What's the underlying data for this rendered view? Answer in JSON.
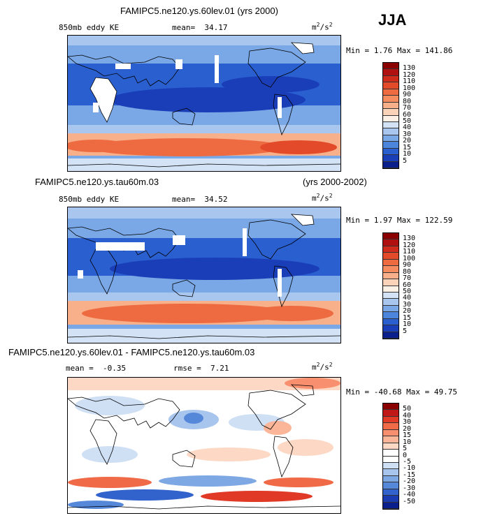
{
  "season": "JJA",
  "panels": [
    {
      "title": "FAMIPC5.ne120.ys.60lev.01 (yrs 2000)",
      "subtitle": "",
      "field_label": "850mb eddy KE",
      "mean_label": "mean=",
      "mean": "34.17",
      "rmse_label": "",
      "rmse": "",
      "units": "m",
      "units_sup": "2",
      "units_tail": "/s",
      "units_sup2": "2",
      "min_max": "Min =   1.76 Max =  141.86",
      "scale": "ke",
      "colorbar_ticks": [
        "130",
        "120",
        "110",
        "100",
        "90",
        "80",
        "70",
        "60",
        "50",
        "40",
        "30",
        "20",
        "15",
        "10",
        "5"
      ]
    },
    {
      "title": "FAMIPC5.ne120.ys.tau60m.03",
      "subtitle": "(yrs 2000-2002)",
      "field_label": "850mb eddy KE",
      "mean_label": "mean=",
      "mean": "34.52",
      "rmse_label": "",
      "rmse": "",
      "units": "m",
      "units_sup": "2",
      "units_tail": "/s",
      "units_sup2": "2",
      "min_max": "Min =   1.97 Max =  122.59",
      "scale": "ke",
      "colorbar_ticks": [
        "130",
        "120",
        "110",
        "100",
        "90",
        "80",
        "70",
        "60",
        "50",
        "40",
        "30",
        "20",
        "15",
        "10",
        "5"
      ]
    },
    {
      "title": "FAMIPC5.ne120.ys.60lev.01 - FAMIPC5.ne120.ys.tau60m.03",
      "subtitle": "",
      "field_label": "",
      "mean_label": "mean =",
      "mean": "-0.35",
      "rmse_label": "rmse =",
      "rmse": "7.21",
      "units": "m",
      "units_sup": "2",
      "units_tail": "/s",
      "units_sup2": "2",
      "min_max": "Min = -40.68 Max =  49.75",
      "scale": "diff",
      "colorbar_ticks": [
        "50",
        "40",
        "30",
        "20",
        "15",
        "10",
        "5",
        "0",
        "-5",
        "-10",
        "-15",
        "-20",
        "-30",
        "-40",
        "-50"
      ]
    }
  ],
  "colors": {
    "ke_scale": [
      "#8b0000",
      "#b01010",
      "#cf2a1a",
      "#e24a2a",
      "#ee6a40",
      "#f48c60",
      "#f8b08a",
      "#fbd3b8",
      "#fdf1e6",
      "#d3e2f5",
      "#a9c7ee",
      "#7aa8e6",
      "#4c86dc",
      "#2a5fd0",
      "#1a3eb8",
      "#0a1e8c"
    ],
    "diff_scale": [
      "#8b0000",
      "#c01818",
      "#e03a26",
      "#f06a48",
      "#f89070",
      "#fbb598",
      "#fdd8c4",
      "#ffffff",
      "#ffffff",
      "#cfe0f5",
      "#a8c5ee",
      "#7ea8e4",
      "#5688da",
      "#3262cc",
      "#1a3cb0",
      "#0a1e8c"
    ]
  }
}
